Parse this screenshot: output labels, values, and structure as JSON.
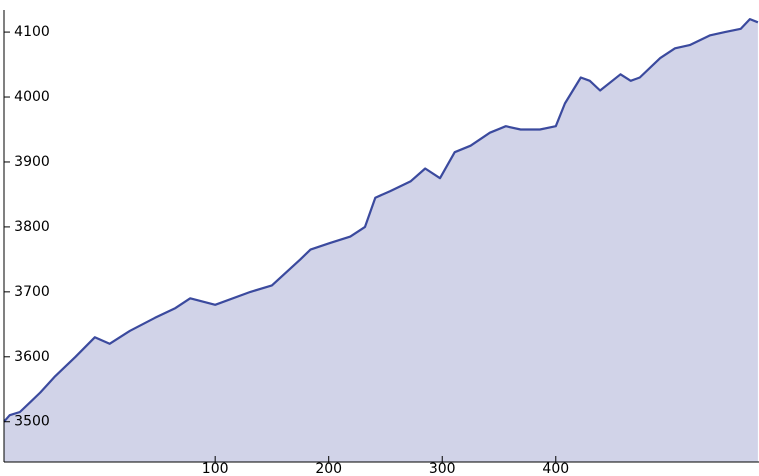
{
  "chart_data": {
    "type": "area",
    "x": [
      -86,
      -81,
      -72,
      -63,
      -54,
      -41,
      -23,
      -6,
      7,
      25,
      47,
      65,
      78,
      100,
      131,
      150,
      175,
      184,
      201,
      219,
      232,
      241,
      254,
      272,
      285,
      298,
      311,
      325,
      342,
      356,
      369,
      386,
      400,
      408,
      422,
      430,
      439,
      457,
      466,
      474,
      492,
      505,
      518,
      536,
      549,
      563,
      571,
      578
    ],
    "series": [
      {
        "color": "#3b4a9e",
        "fill": "#d1d3e8",
        "values": [
          3500,
          3510,
          3515,
          3530,
          3545,
          3570,
          3600,
          3630,
          3620,
          3640,
          3660,
          3675,
          3690,
          3680,
          3700,
          3710,
          3750,
          3765,
          3775,
          3785,
          3800,
          3845,
          3855,
          3870,
          3890,
          3875,
          3915,
          3925,
          3945,
          3955,
          3950,
          3950,
          3955,
          3990,
          4030,
          4025,
          4010,
          4035,
          4025,
          4030,
          4060,
          4075,
          4080,
          4095,
          4100,
          4105,
          4120,
          4115
        ]
      }
    ],
    "xlim": [
      -86,
      579
    ],
    "ylim": [
      3438,
      4134
    ],
    "xticks": [
      100,
      200,
      300,
      400
    ],
    "yticks": [
      3500,
      3600,
      3700,
      3800,
      3900,
      4000,
      4100
    ]
  }
}
